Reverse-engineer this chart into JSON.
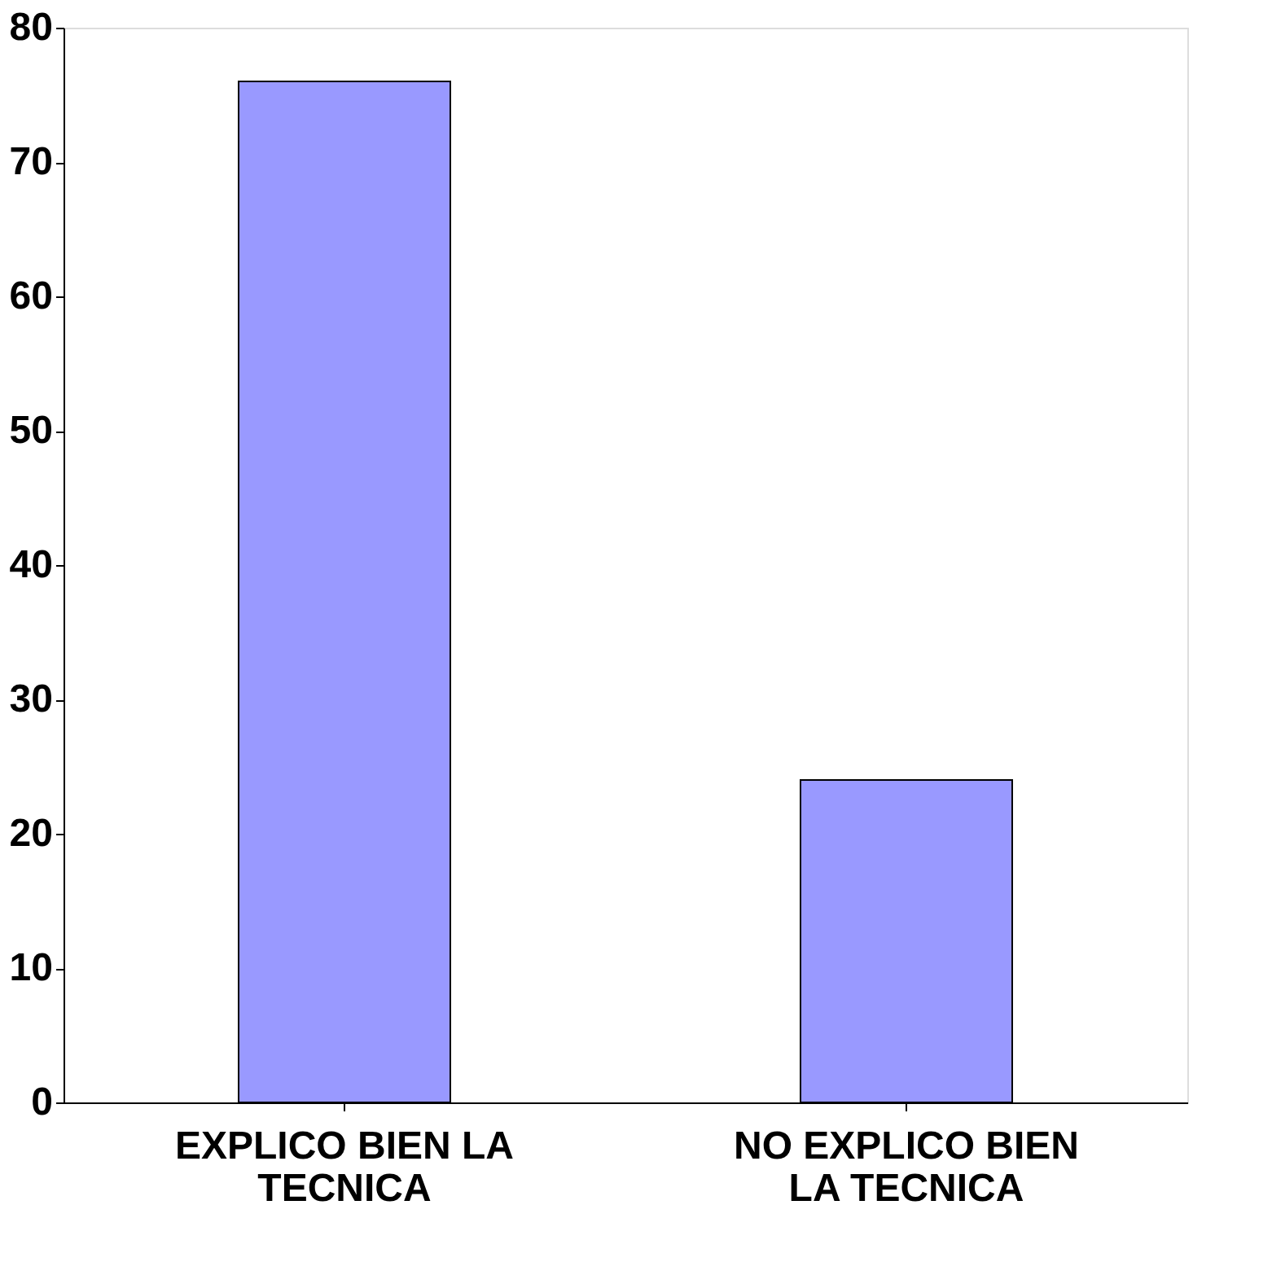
{
  "chart_data": {
    "type": "bar",
    "categories": [
      "EXPLICO BIEN LA TECNICA",
      "NO EXPLICO BIEN LA TECNICA"
    ],
    "values": [
      76,
      24
    ],
    "color": "#9999ff",
    "ylim": [
      0,
      80
    ],
    "yticks": [
      0,
      10,
      20,
      30,
      40,
      50,
      60,
      70,
      80
    ],
    "grid": false
  }
}
